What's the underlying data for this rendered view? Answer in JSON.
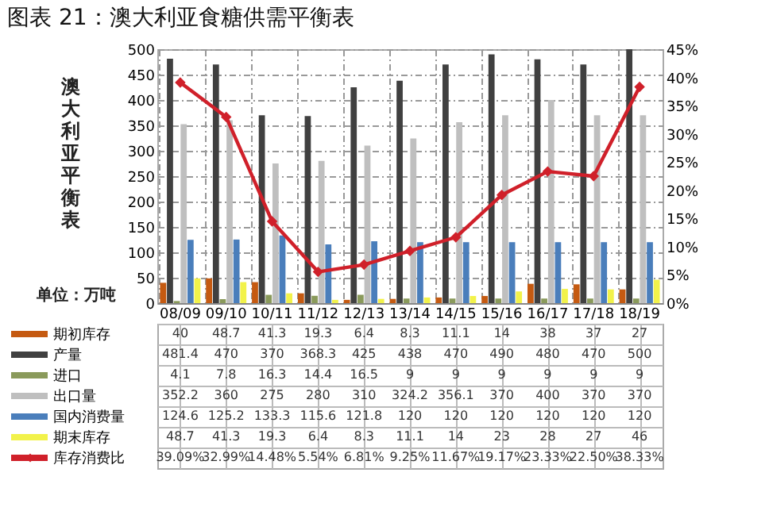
{
  "chart_data": {
    "type": "bar",
    "title": "图表 21：澳大利亚食糖供需平衡表",
    "ylabel": "澳大利亚平衡表",
    "annotations": [
      "单位：万吨"
    ],
    "categories": [
      "08/09",
      "09/10",
      "10/11",
      "11/12",
      "12/13",
      "13/14",
      "14/15",
      "15/16",
      "16/17",
      "17/18",
      "18/19"
    ],
    "series": [
      {
        "name": "期初库存",
        "color": "#c55a11",
        "values": [
          40,
          48.7,
          41.3,
          19.3,
          6.4,
          8.3,
          11.1,
          14,
          38,
          37,
          27
        ],
        "value_labels": [
          "40",
          "48.7",
          "41.3",
          "19.3",
          "6.4",
          "8.3",
          "11.1",
          "14",
          "38",
          "37",
          "27"
        ]
      },
      {
        "name": "产量",
        "color": "#404040",
        "values": [
          481.4,
          470,
          370,
          368.3,
          425,
          438,
          470,
          490,
          480,
          470,
          500
        ],
        "value_labels": [
          "481.4",
          "470",
          "370",
          "368.3",
          "425",
          "438",
          "470",
          "490",
          "480",
          "470",
          "500"
        ]
      },
      {
        "name": "进口",
        "color": "#8a9a5b",
        "values": [
          4.1,
          7.8,
          16.3,
          14.4,
          16.5,
          9,
          9,
          9,
          9,
          9,
          9
        ],
        "value_labels": [
          "4.1",
          "7.8",
          "16.3",
          "14.4",
          "16.5",
          "9",
          "9",
          "9",
          "9",
          "9",
          "9"
        ]
      },
      {
        "name": "出口量",
        "color": "#bfbfbf",
        "values": [
          352.2,
          360,
          275,
          280,
          310,
          324.2,
          356.1,
          370,
          400,
          370,
          370
        ],
        "value_labels": [
          "352.2",
          "360",
          "275",
          "280",
          "310",
          "324.2",
          "356.1",
          "370",
          "400",
          "370",
          "370"
        ]
      },
      {
        "name": "国内消费量",
        "color": "#4a7ebb",
        "values": [
          124.6,
          125.2,
          133.3,
          115.6,
          121.8,
          120,
          120,
          120,
          120,
          120,
          120
        ],
        "value_labels": [
          "124.6",
          "125.2",
          "133.3",
          "115.6",
          "121.8",
          "120",
          "120",
          "120",
          "120",
          "120",
          "120"
        ]
      },
      {
        "name": "期末库存",
        "color": "#f2f24a",
        "values": [
          48.7,
          41.3,
          19.3,
          6.4,
          8.3,
          11.1,
          14,
          23,
          28,
          27,
          46
        ],
        "value_labels": [
          "48.7",
          "41.3",
          "19.3",
          "6.4",
          "8.3",
          "11.1",
          "14",
          "23",
          "28",
          "27",
          "46"
        ]
      },
      {
        "name": "库存消费比",
        "type": "line",
        "axis": "y2",
        "color": "#d0202a",
        "values": [
          39.09,
          32.99,
          14.48,
          5.54,
          6.81,
          9.25,
          11.67,
          19.17,
          23.33,
          22.5,
          38.33
        ],
        "value_labels": [
          "39.09%",
          "32.99%",
          "14.48%",
          "5.54%",
          "6.81%",
          "9.25%",
          "11.67%",
          "19.17%",
          "23.33%",
          "22.50%",
          "38.33%"
        ]
      }
    ],
    "ylim": [
      0,
      500
    ],
    "yticks": [
      0,
      50,
      100,
      150,
      200,
      250,
      300,
      350,
      400,
      450,
      500
    ],
    "y2lim": [
      0,
      45
    ],
    "y2ticks": [
      {
        "value": 0,
        "label": "0%"
      },
      {
        "value": 5,
        "label": "5%"
      },
      {
        "value": 10,
        "label": "10%"
      },
      {
        "value": 15,
        "label": "15%"
      },
      {
        "value": 20,
        "label": "20%"
      },
      {
        "value": 25,
        "label": "25%"
      },
      {
        "value": 30,
        "label": "30%"
      },
      {
        "value": 35,
        "label": "35%"
      },
      {
        "value": 40,
        "label": "40%"
      },
      {
        "value": 45,
        "label": "45%"
      }
    ],
    "grid": true,
    "marker": "diamond",
    "legend": "bottom left"
  }
}
